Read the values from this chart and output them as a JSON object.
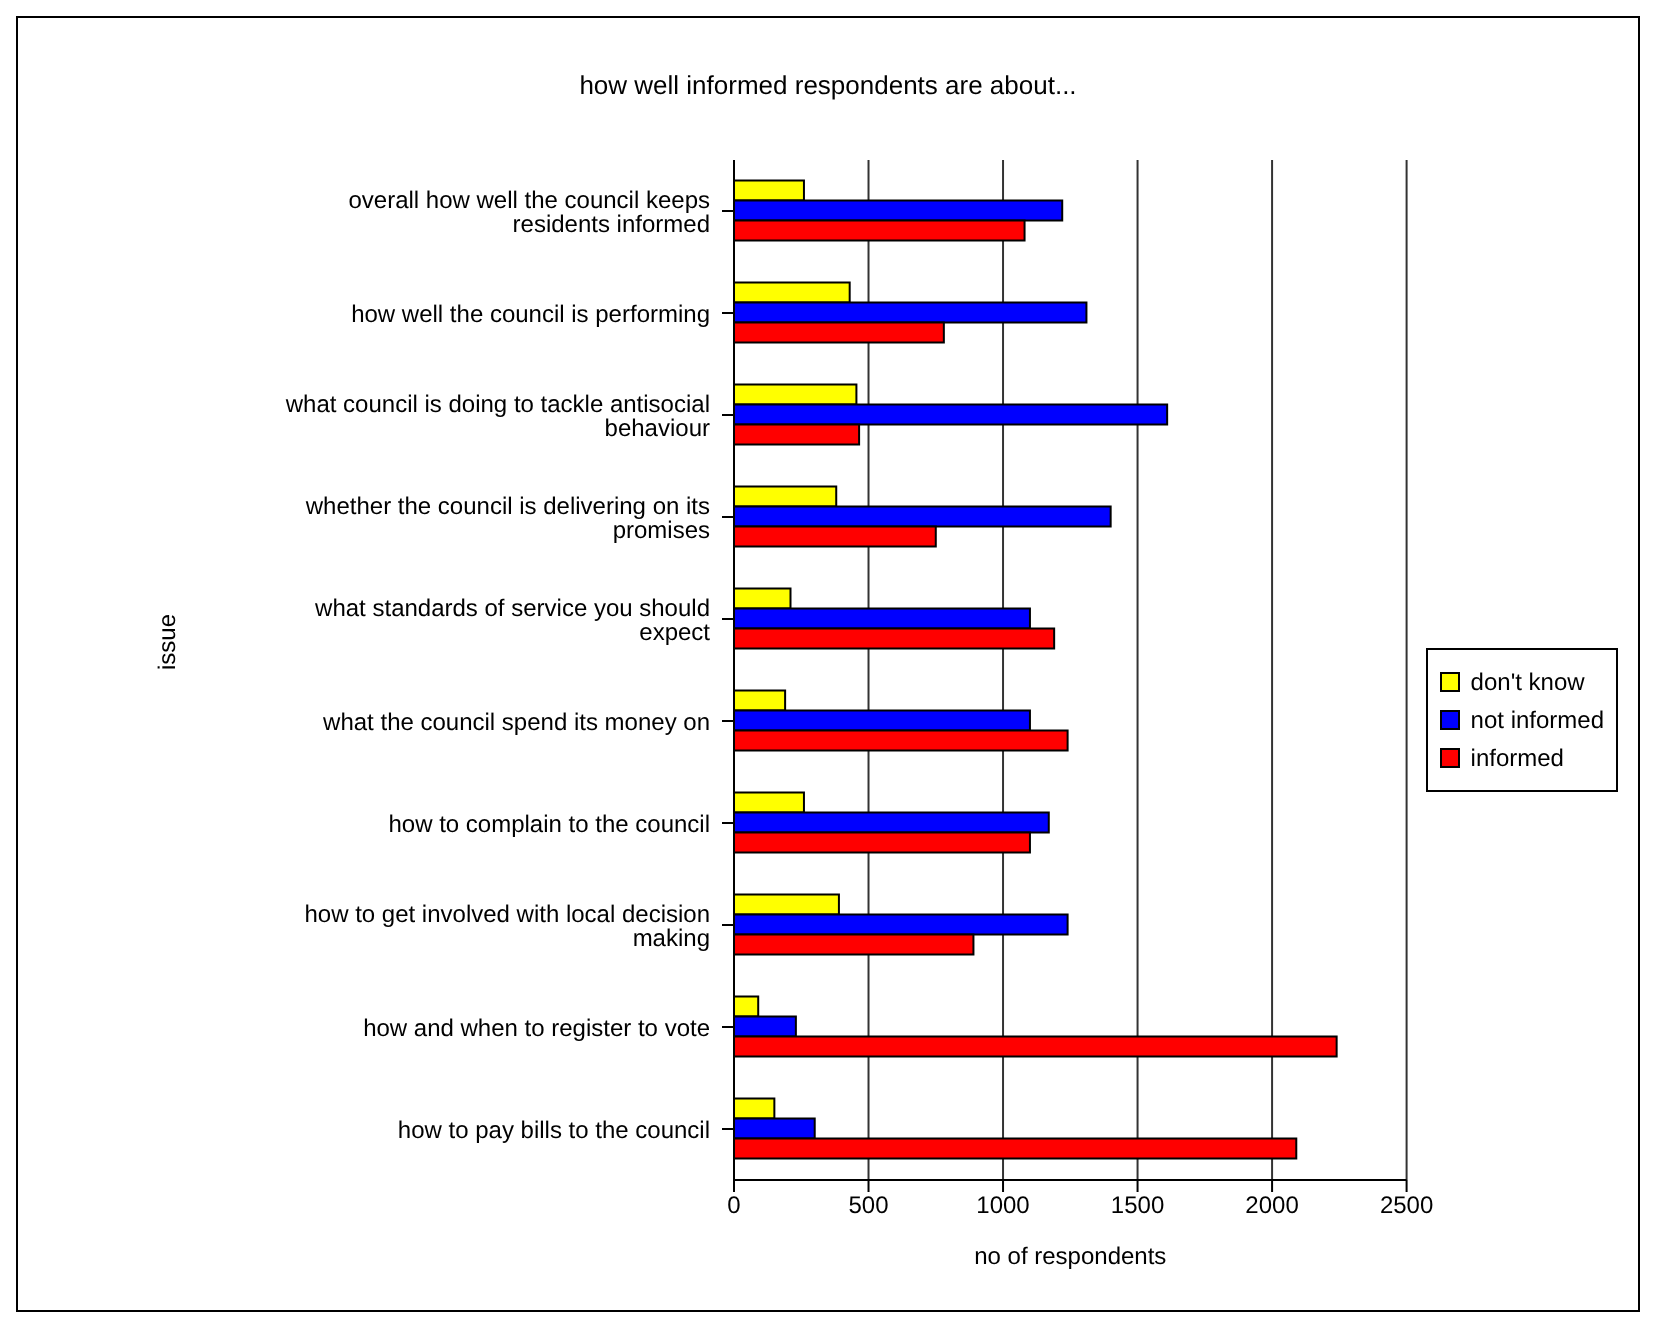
{
  "chart_data": {
    "type": "bar",
    "orientation": "horizontal",
    "title": "how well informed respondents are about...",
    "xlabel": "no of respondents",
    "ylabel": "issue",
    "categories": [
      "overall how well the council keeps residents informed",
      "how well the council is performing",
      "what council is doing to tackle antisocial behaviour",
      "whether the council is delivering on its promises",
      "what standards of service you should expect",
      "what the council spend its money on",
      "how to complain to the council",
      "how to get involved with local decision making",
      "how and when to register to vote",
      "how to pay bills to the council"
    ],
    "series": [
      {
        "name": "don't know",
        "color": "#ffff00",
        "values": [
          260,
          430,
          455,
          380,
          210,
          190,
          260,
          390,
          90,
          150
        ]
      },
      {
        "name": "not informed",
        "color": "#0000ff",
        "values": [
          1220,
          1310,
          1610,
          1400,
          1100,
          1100,
          1170,
          1240,
          230,
          300
        ]
      },
      {
        "name": "informed",
        "color": "#ff0000",
        "values": [
          1080,
          780,
          465,
          750,
          1190,
          1240,
          1100,
          890,
          2240,
          2090
        ]
      }
    ],
    "xlim": [
      0,
      2500
    ],
    "xticks": [
      0,
      500,
      1000,
      1500,
      2000,
      2500
    ],
    "grid": "x",
    "legend": "right"
  }
}
